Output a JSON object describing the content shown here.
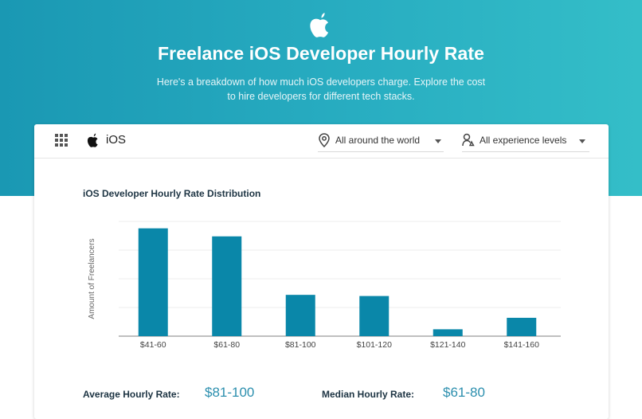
{
  "header": {
    "title": "Freelance iOS Developer Hourly Rate",
    "subtitle": "Here's a breakdown of how much iOS developers charge. Explore the cost to hire developers for different tech stacks."
  },
  "toolbar": {
    "stack_name": "iOS",
    "location_filter": "All around the world",
    "experience_filter": "All experience levels"
  },
  "chart_data": {
    "type": "bar",
    "title": "iOS Developer Hourly Rate Distribution",
    "xlabel": "",
    "ylabel": "Amount of Freelancers",
    "categories": [
      "$41-60",
      "$61-80",
      "$81-100",
      "$101-120",
      "$121-140",
      "$141-160"
    ],
    "values": [
      94,
      87,
      36,
      35,
      6,
      16
    ],
    "ylim": [
      0,
      100
    ],
    "grid": true,
    "bar_color": "#0a87a9"
  },
  "stats": {
    "average_label": "Average Hourly Rate:",
    "average_value": "$81-100",
    "median_label": "Median Hourly Rate:",
    "median_value": "$61-80"
  },
  "colors": {
    "hero_start": "#1a98b3",
    "hero_end": "#34bec8",
    "accent": "#2c8fae"
  }
}
